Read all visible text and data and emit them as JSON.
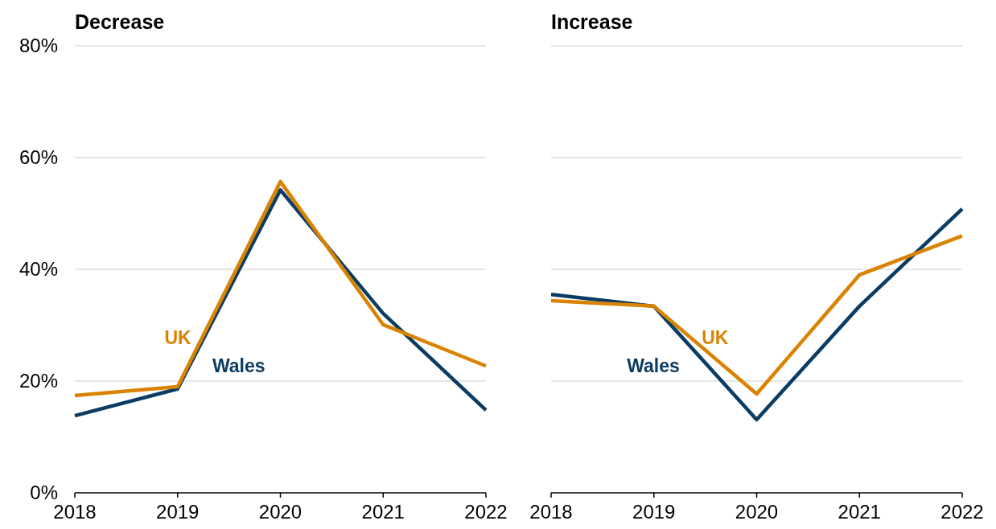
{
  "chart_data": [
    {
      "type": "line",
      "title": "Decrease",
      "x": [
        2018,
        2019,
        2020,
        2021,
        2022
      ],
      "xlim": [
        2018,
        2022
      ],
      "xticks": [
        2018,
        2019,
        2020,
        2021,
        2022
      ],
      "ylim": [
        0,
        80
      ],
      "yticks": [
        {
          "value": 0,
          "label": "0%"
        },
        {
          "value": 20,
          "label": "20%"
        },
        {
          "value": 40,
          "label": "40%"
        },
        {
          "value": 60,
          "label": "60%"
        },
        {
          "value": 80,
          "label": "80%"
        }
      ],
      "grid": "y",
      "series": [
        {
          "name": "Wales",
          "color": "#0b3c63",
          "values": [
            13.8,
            18.6,
            54.2,
            32.1,
            14.8
          ]
        },
        {
          "name": "UK",
          "color": "#d98300",
          "values": [
            17.4,
            19.0,
            55.7,
            30.1,
            22.7
          ]
        }
      ]
    },
    {
      "type": "line",
      "title": "Increase",
      "x": [
        2018,
        2019,
        2020,
        2021,
        2022
      ],
      "xlim": [
        2018,
        2022
      ],
      "xticks": [
        2018,
        2019,
        2020,
        2021,
        2022
      ],
      "ylim": [
        0,
        80
      ],
      "yticks": [
        0,
        20,
        40,
        60,
        80
      ],
      "grid": "y",
      "tick_labels": "x",
      "series": [
        {
          "name": "Wales",
          "color": "#0b3c63",
          "values": [
            35.5,
            33.4,
            13.1,
            33.4,
            50.8
          ]
        },
        {
          "name": "UK",
          "color": "#d98300",
          "values": [
            34.4,
            33.4,
            17.7,
            39.0,
            46.0
          ]
        }
      ]
    }
  ]
}
